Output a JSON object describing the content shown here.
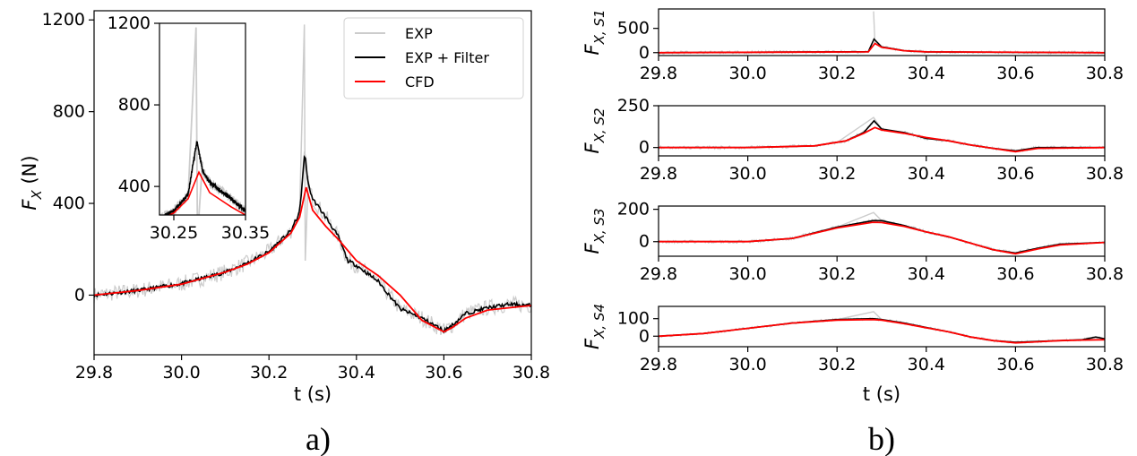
{
  "figure": {
    "panel_a_label": "a)",
    "panel_b_label": "b)",
    "legend": [
      "EXP",
      "EXP +  Filter",
      "CFD"
    ],
    "colors": {
      "exp": "#cccccc",
      "filter": "#000000",
      "cfd": "#ff0000"
    }
  },
  "chart_data": [
    {
      "type": "line",
      "panel": "a",
      "xlabel": "t (s)",
      "ylabel_main": "F",
      "ylabel_sub": "X",
      "ylabel_unit": " (N)",
      "xlim": [
        29.8,
        30.8
      ],
      "ylim": [
        -260,
        1240
      ],
      "xticks": [
        29.8,
        30.0,
        30.2,
        30.4,
        30.6,
        30.8
      ],
      "xtick_labels": [
        "29.8",
        "30.0",
        "30.2",
        "30.4",
        "30.6",
        "30.8"
      ],
      "yticks": [
        0,
        400,
        800,
        1200
      ],
      "ytick_labels": [
        "0",
        "400",
        "800",
        "1200"
      ],
      "legend_position": "top-right",
      "series": [
        {
          "name": "EXP + Filter",
          "x": [
            29.8,
            29.9,
            30.0,
            30.1,
            30.15,
            30.2,
            30.25,
            30.27,
            30.282,
            30.29,
            30.3,
            30.33,
            30.36,
            30.38,
            30.4,
            30.45,
            30.5,
            30.55,
            30.6,
            30.62,
            30.65,
            30.7,
            30.75,
            30.8
          ],
          "y": [
            0,
            20,
            50,
            100,
            140,
            190,
            280,
            360,
            620,
            480,
            420,
            340,
            250,
            150,
            130,
            60,
            -60,
            -100,
            -155,
            -130,
            -80,
            -55,
            -40,
            -45
          ]
        },
        {
          "name": "CFD",
          "x": [
            29.8,
            29.9,
            30.0,
            30.1,
            30.15,
            30.2,
            30.25,
            30.27,
            30.285,
            30.3,
            30.33,
            30.36,
            30.4,
            30.45,
            30.5,
            30.55,
            30.6,
            30.62,
            30.65,
            30.7,
            30.75,
            30.8
          ],
          "y": [
            0,
            20,
            48,
            100,
            135,
            185,
            270,
            340,
            470,
            370,
            300,
            240,
            150,
            85,
            0,
            -110,
            -160,
            -140,
            -100,
            -65,
            -55,
            -45
          ]
        },
        {
          "name": "EXP",
          "x": [
            29.8,
            29.9,
            30.0,
            30.1,
            30.2,
            30.25,
            30.27,
            30.281,
            30.283,
            30.29,
            30.3,
            30.35,
            30.4,
            30.45,
            30.5,
            30.6,
            30.7,
            30.8
          ],
          "y": [
            0,
            20,
            50,
            100,
            190,
            280,
            360,
            1180,
            150,
            520,
            430,
            300,
            140,
            60,
            -60,
            -155,
            -55,
            -45
          ]
        }
      ],
      "inset": {
        "xlim": [
          30.23,
          30.35
        ],
        "ylim": [
          260,
          1200
        ],
        "xticks": [
          30.25,
          30.35
        ],
        "xtick_labels": [
          "30.25",
          "30.35"
        ],
        "yticks": [
          400,
          800,
          1200
        ],
        "ytick_labels": [
          "400",
          "800",
          "1200"
        ]
      }
    },
    {
      "type": "line",
      "panel": "b1",
      "ylabel_main": "F",
      "ylabel_sub": "X, S1",
      "xlim": [
        29.8,
        30.8
      ],
      "ylim": [
        -60,
        900
      ],
      "yticks": [
        0,
        500
      ],
      "ytick_labels": [
        "0",
        "500"
      ],
      "xticks": [
        29.8,
        30.0,
        30.2,
        30.4,
        30.6,
        30.8
      ],
      "xtick_labels": [
        "29.8",
        "30.0",
        "30.2",
        "30.4",
        "30.6",
        "30.8"
      ],
      "series": [
        {
          "name": "EXP + Filter",
          "x": [
            29.8,
            30.27,
            30.283,
            30.3,
            30.35,
            30.4,
            30.8
          ],
          "y": [
            0,
            20,
            280,
            120,
            40,
            15,
            0
          ]
        },
        {
          "name": "CFD",
          "x": [
            29.8,
            30.27,
            30.285,
            30.3,
            30.35,
            30.4,
            30.8
          ],
          "y": [
            0,
            15,
            190,
            110,
            40,
            15,
            0
          ]
        },
        {
          "name": "EXP",
          "x": [
            29.8,
            30.279,
            30.282,
            30.285,
            30.3,
            30.4,
            30.8
          ],
          "y": [
            0,
            30,
            850,
            200,
            100,
            15,
            0
          ]
        }
      ]
    },
    {
      "type": "line",
      "panel": "b2",
      "ylabel_main": "F",
      "ylabel_sub": "X, S2",
      "xlim": [
        29.8,
        30.8
      ],
      "ylim": [
        -50,
        250
      ],
      "yticks": [
        0,
        250
      ],
      "ytick_labels": [
        "0",
        "250"
      ],
      "xticks": [
        29.8,
        30.0,
        30.2,
        30.4,
        30.6,
        30.8
      ],
      "xtick_labels": [
        "29.8",
        "30.0",
        "30.2",
        "30.4",
        "30.6",
        "30.8"
      ],
      "series": [
        {
          "name": "EXP + Filter",
          "x": [
            29.8,
            30.0,
            30.15,
            30.22,
            30.26,
            30.283,
            30.3,
            30.35,
            30.4,
            30.45,
            30.5,
            30.55,
            30.6,
            30.65,
            30.8
          ],
          "y": [
            0,
            0,
            10,
            40,
            90,
            160,
            110,
            90,
            55,
            40,
            15,
            -5,
            -20,
            0,
            0
          ]
        },
        {
          "name": "CFD",
          "x": [
            29.8,
            30.0,
            30.15,
            30.22,
            30.26,
            30.285,
            30.3,
            30.35,
            30.4,
            30.45,
            30.5,
            30.55,
            30.6,
            30.65,
            30.8
          ],
          "y": [
            0,
            0,
            10,
            40,
            85,
            120,
            105,
            85,
            60,
            40,
            15,
            -5,
            -25,
            -5,
            0
          ]
        },
        {
          "name": "EXP",
          "x": [
            29.8,
            30.0,
            30.2,
            30.282,
            30.3,
            30.4,
            30.5,
            30.6,
            30.8
          ],
          "y": [
            0,
            0,
            30,
            180,
            110,
            55,
            15,
            -20,
            0
          ]
        }
      ]
    },
    {
      "type": "line",
      "panel": "b3",
      "ylabel_main": "F",
      "ylabel_sub": "X, S3",
      "xlim": [
        29.8,
        30.8
      ],
      "ylim": [
        -90,
        220
      ],
      "yticks": [
        0,
        200
      ],
      "ytick_labels": [
        "0",
        "200"
      ],
      "xticks": [
        29.8,
        30.0,
        30.2,
        30.4,
        30.6,
        30.8
      ],
      "xtick_labels": [
        "29.8",
        "30.0",
        "30.2",
        "30.4",
        "30.6",
        "30.8"
      ],
      "series": [
        {
          "name": "EXP + Filter",
          "x": [
            29.8,
            30.0,
            30.1,
            30.2,
            30.28,
            30.3,
            30.35,
            30.4,
            30.45,
            30.5,
            30.55,
            30.6,
            30.65,
            30.7,
            30.8
          ],
          "y": [
            0,
            0,
            20,
            90,
            130,
            130,
            100,
            60,
            30,
            -10,
            -50,
            -70,
            -40,
            -15,
            -5
          ]
        },
        {
          "name": "CFD",
          "x": [
            29.8,
            30.0,
            30.1,
            30.2,
            30.28,
            30.3,
            30.35,
            30.4,
            30.45,
            30.5,
            30.55,
            30.6,
            30.65,
            30.7,
            30.8
          ],
          "y": [
            0,
            0,
            20,
            85,
            120,
            118,
            95,
            60,
            30,
            -10,
            -50,
            -75,
            -45,
            -20,
            -5
          ]
        },
        {
          "name": "EXP",
          "x": [
            29.8,
            30.0,
            30.2,
            30.282,
            30.3,
            30.4,
            30.6,
            30.8
          ],
          "y": [
            0,
            0,
            90,
            180,
            130,
            60,
            -70,
            -5
          ]
        }
      ]
    },
    {
      "type": "line",
      "panel": "b4",
      "ylabel_main": "F",
      "ylabel_sub": "X, S4",
      "xlim": [
        29.8,
        30.8
      ],
      "ylim": [
        -60,
        170
      ],
      "yticks": [
        0,
        100
      ],
      "ytick_labels": [
        "0",
        "100"
      ],
      "xticks": [
        29.8,
        30.0,
        30.2,
        30.4,
        30.6,
        30.8
      ],
      "xtick_labels": [
        "29.8",
        "30.0",
        "30.2",
        "30.4",
        "30.6",
        "30.8"
      ],
      "xlabel": "t (s)",
      "series": [
        {
          "name": "EXP + Filter",
          "x": [
            29.8,
            29.9,
            30.0,
            30.1,
            30.2,
            30.28,
            30.3,
            30.35,
            30.4,
            30.45,
            30.5,
            30.55,
            30.6,
            30.65,
            30.7,
            30.75,
            30.78,
            30.8
          ],
          "y": [
            0,
            15,
            45,
            75,
            95,
            100,
            95,
            75,
            50,
            25,
            -5,
            -25,
            -35,
            -30,
            -25,
            -20,
            -5,
            -15
          ]
        },
        {
          "name": "CFD",
          "x": [
            29.8,
            29.9,
            30.0,
            30.1,
            30.2,
            30.28,
            30.3,
            30.35,
            30.4,
            30.45,
            30.5,
            30.55,
            30.6,
            30.65,
            30.7,
            30.75,
            30.8
          ],
          "y": [
            0,
            15,
            45,
            75,
            92,
            95,
            92,
            72,
            48,
            25,
            -5,
            -25,
            -38,
            -32,
            -25,
            -22,
            -20
          ]
        },
        {
          "name": "EXP",
          "x": [
            29.8,
            30.0,
            30.2,
            30.282,
            30.3,
            30.4,
            30.6,
            30.8
          ],
          "y": [
            0,
            45,
            95,
            140,
            95,
            50,
            -35,
            -15
          ]
        }
      ]
    }
  ]
}
